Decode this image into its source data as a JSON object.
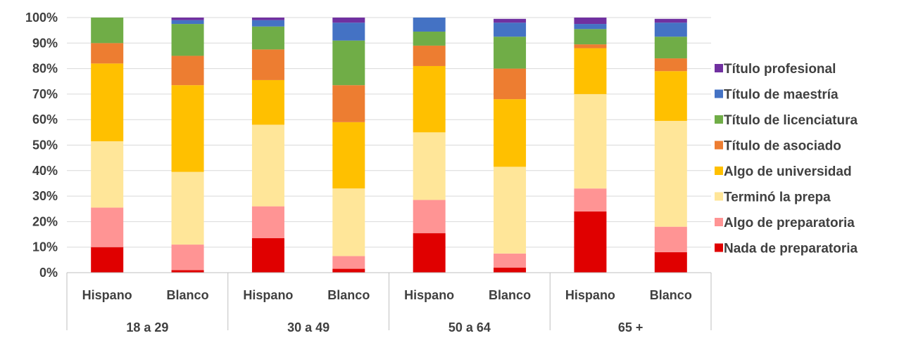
{
  "chart_data": {
    "type": "bar",
    "stacked": true,
    "grid": true,
    "legend_position": "right",
    "ylim": [
      0,
      100
    ],
    "y_ticks": [
      "0%",
      "10%",
      "20%",
      "30%",
      "40%",
      "50%",
      "60%",
      "70%",
      "80%",
      "90%",
      "100%"
    ],
    "groups": [
      "18 a 29",
      "30 a 49",
      "50 a 64",
      "65 +"
    ],
    "categories": [
      "Hispano",
      "Blanco",
      "Hispano",
      "Blanco",
      "Hispano",
      "Blanco",
      "Hispano",
      "Blanco"
    ],
    "series": [
      {
        "name": "Nada de preparatoria",
        "color": "#E00000",
        "values": [
          10,
          1,
          13.5,
          1.5,
          15.5,
          2,
          24,
          8
        ]
      },
      {
        "name": "Algo de preparatoria",
        "color": "#FF9494",
        "values": [
          15.5,
          10,
          12.5,
          5,
          13,
          5.5,
          9,
          10
        ]
      },
      {
        "name": "Terminó la prepa",
        "color": "#FFE699",
        "values": [
          26,
          28.5,
          32,
          26.5,
          26.5,
          34,
          37,
          41.5
        ]
      },
      {
        "name": "Algo de universidad",
        "color": "#FFC000",
        "values": [
          30.5,
          34,
          17.5,
          26,
          26,
          26.5,
          18,
          19.5
        ]
      },
      {
        "name": "Título de asociado",
        "color": "#ED7D31",
        "values": [
          8,
          11.5,
          12,
          14.5,
          8,
          12,
          1.5,
          5
        ]
      },
      {
        "name": "Título de licenciatura",
        "color": "#70AD47",
        "values": [
          10,
          12.5,
          9,
          17.5,
          5.5,
          12.5,
          6,
          8.5
        ]
      },
      {
        "name": "Título de maestría",
        "color": "#4472C4",
        "values": [
          0,
          1.5,
          2.5,
          7,
          5.5,
          5.5,
          2,
          5.5
        ]
      },
      {
        "name": "Título profesional",
        "color": "#7030A0",
        "values": [
          0,
          1,
          1,
          2,
          0,
          1.5,
          2.5,
          1.5
        ]
      }
    ]
  }
}
